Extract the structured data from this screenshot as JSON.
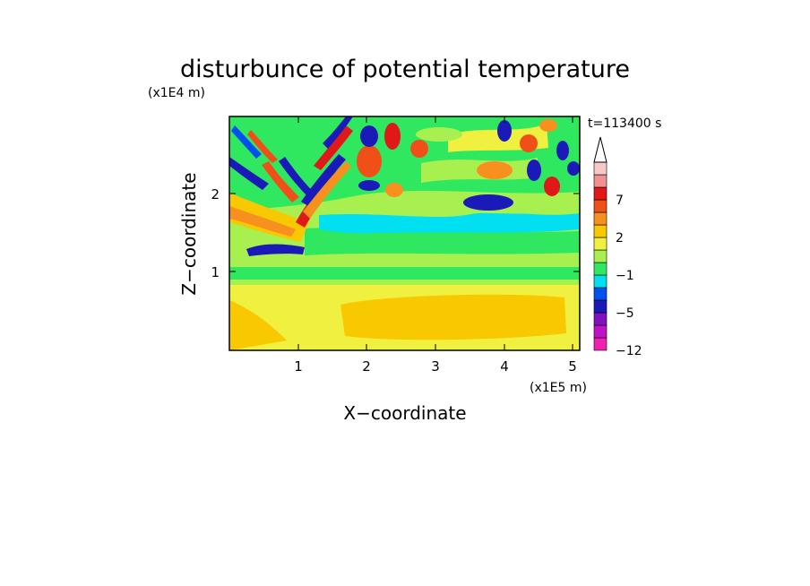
{
  "chart_data": {
    "type": "heatmap",
    "title": "disturbunce of potential temperature",
    "time_label": "t=113400 s",
    "xlabel": "X−coordinate",
    "ylabel": "Z−coordinate",
    "x_unit": "(x1E5 m)",
    "y_unit": "(x1E4 m)",
    "x_ticks": [
      "1",
      "2",
      "3",
      "4",
      "5"
    ],
    "y_ticks": [
      "1",
      "2"
    ],
    "xlim": [
      0,
      5.12
    ],
    "ylim": [
      0,
      2.95
    ],
    "colorbar": {
      "labels": [
        "−12",
        "−5",
        "−1",
        "2",
        "7"
      ],
      "label_values": [
        -12,
        -5,
        -1,
        2,
        7
      ],
      "levels": [
        -12,
        -9,
        -7,
        -5,
        -3,
        -2,
        -1,
        0,
        1,
        2,
        3,
        5,
        7,
        9,
        11
      ],
      "colors": [
        "#f020b0",
        "#c010c8",
        "#8010c0",
        "#1a1ab8",
        "#0050f0",
        "#00e0f0",
        "#30e860",
        "#a8f050",
        "#f0f040",
        "#f8c800",
        "#f89020",
        "#f05018",
        "#e01818",
        "#f09090",
        "#f8c8c8"
      ]
    },
    "field_summary": [
      {
        "region": "z 0-0.9, x 0-5.1",
        "value_range": [
          0,
          3
        ],
        "description": "mostly yellow/orange band"
      },
      {
        "region": "z 0.9-2.0, x 1.5-5.1",
        "value_range": [
          -2,
          0
        ],
        "description": "green and cyan layers"
      },
      {
        "region": "z 1.3-2.9, x 0-1.6",
        "value_range": [
          -7,
          7
        ],
        "description": "tilted wave bands, strong positive and negative"
      },
      {
        "region": "z 2.2-2.9, x 1.5-5.1",
        "value_range": [
          -6,
          7
        ],
        "description": "oscillating anomalies near top"
      }
    ]
  }
}
